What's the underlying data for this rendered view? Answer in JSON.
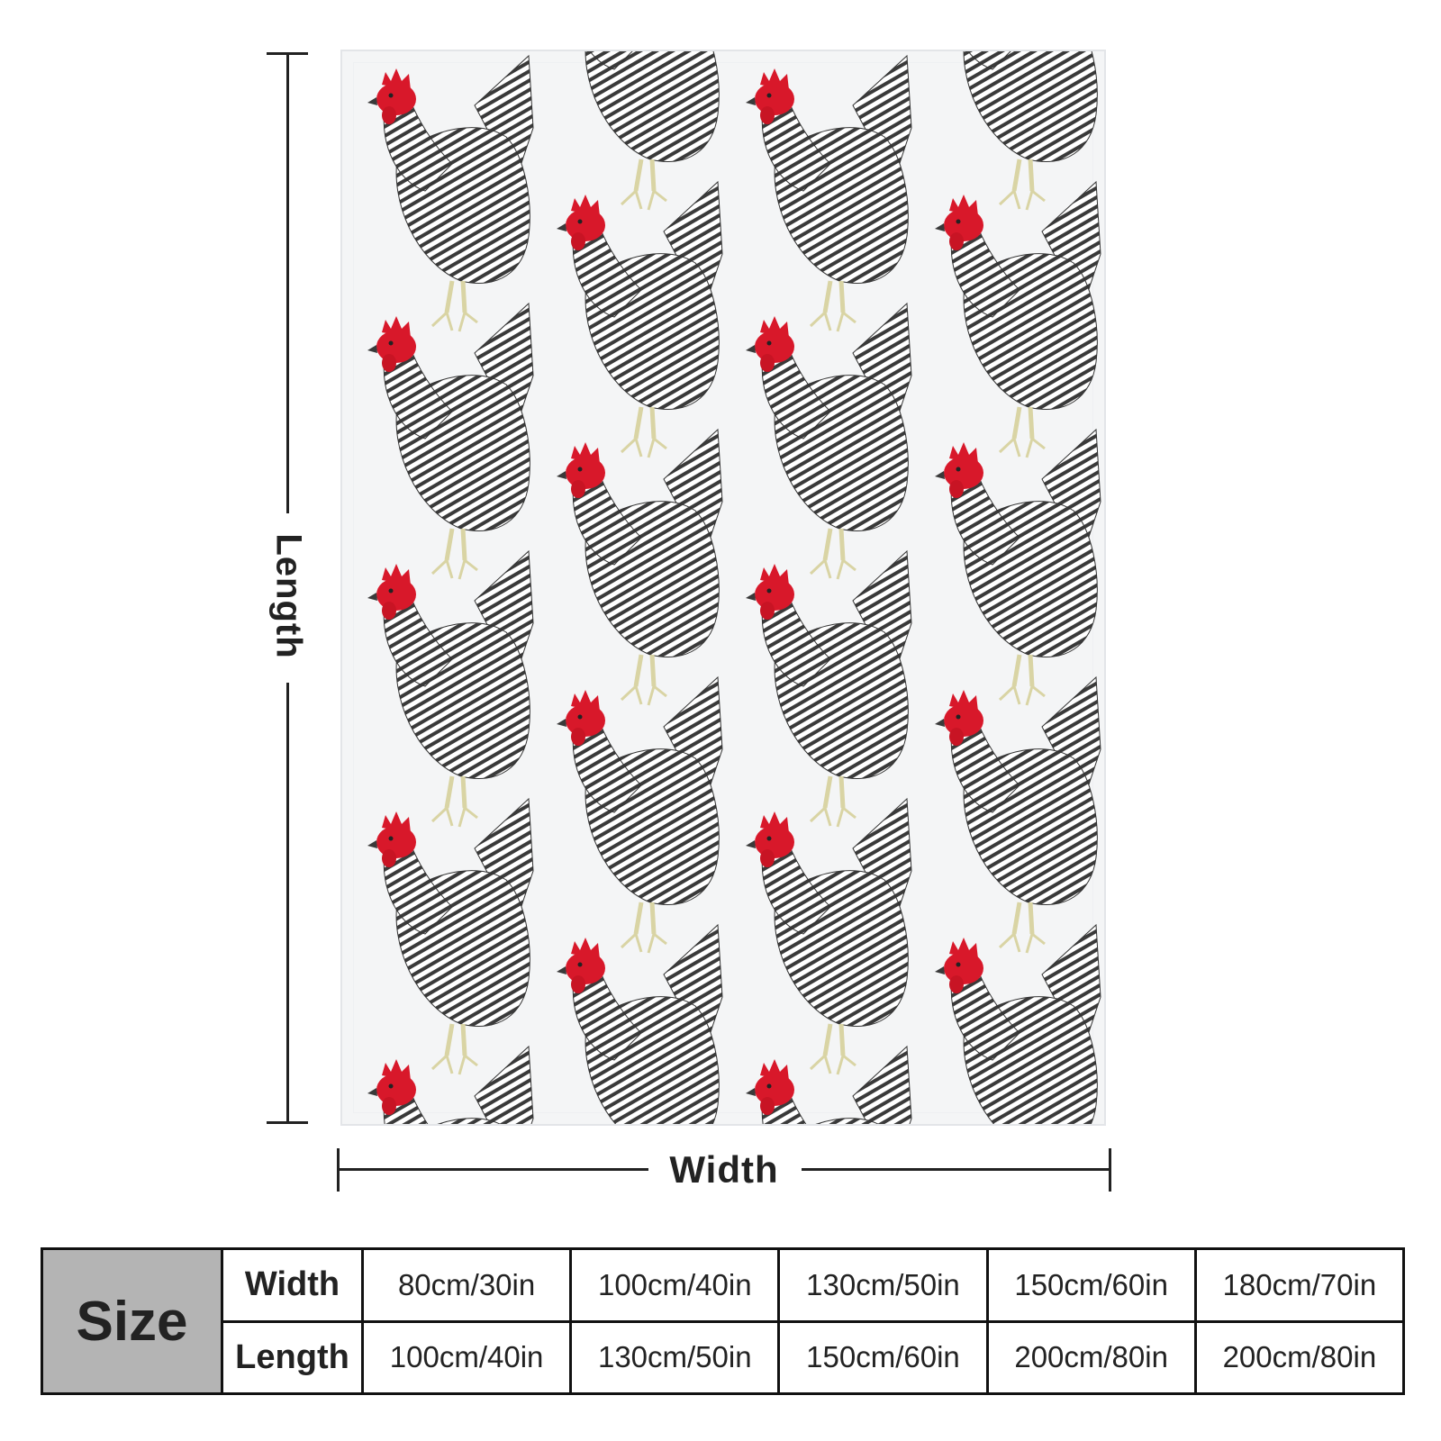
{
  "dimensions": {
    "length_label": "Length",
    "width_label": "Width"
  },
  "product": {
    "pattern": "barred rock chicken pattern on white",
    "colors": {
      "background": "#f4f5f6",
      "comb": "#d8182a",
      "feather_dark": "#3a3a3a",
      "feather_light": "#ffffff",
      "legs": "#e6e2b8"
    }
  },
  "size_table": {
    "header": "Size",
    "row_labels": [
      "Width",
      "Length"
    ],
    "widths": [
      "80cm/30in",
      "100cm/40in",
      "130cm/50in",
      "150cm/60in",
      "180cm/70in"
    ],
    "lengths": [
      "100cm/40in",
      "130cm/50in",
      "150cm/60in",
      "200cm/80in",
      "200cm/80in"
    ]
  }
}
